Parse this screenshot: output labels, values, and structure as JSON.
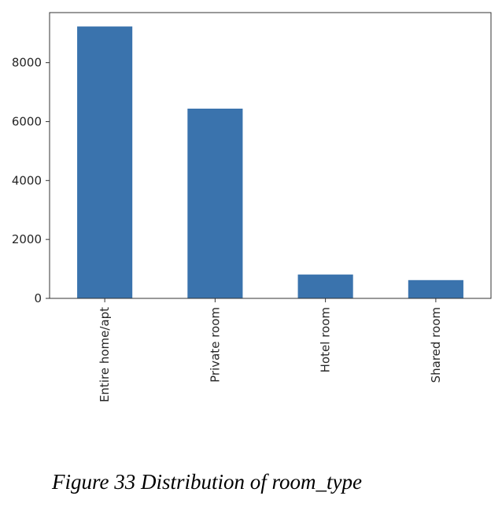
{
  "chart_data": {
    "type": "bar",
    "categories": [
      "Entire home/apt",
      "Private room",
      "Hotel room",
      "Shared room"
    ],
    "values": [
      9230,
      6440,
      810,
      620
    ],
    "yticks": [
      0,
      2000,
      4000,
      6000,
      8000
    ],
    "ylim": [
      0,
      9700
    ],
    "bar_color": "#3a73ad",
    "grid": false,
    "title": "",
    "xlabel": "",
    "ylabel": ""
  },
  "caption": "Figure 33 Distribution of room_type"
}
